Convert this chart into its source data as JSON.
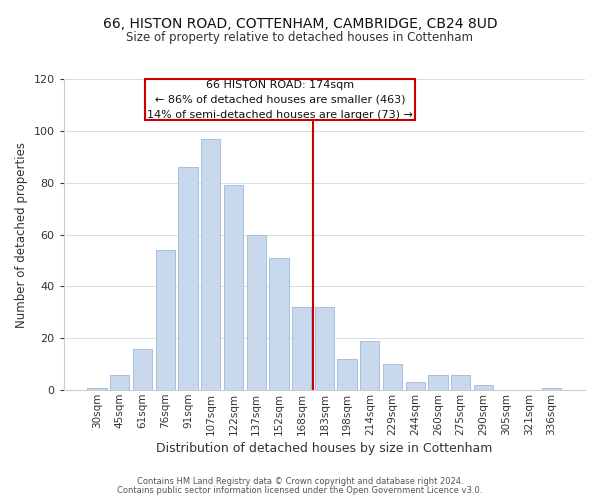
{
  "title1": "66, HISTON ROAD, COTTENHAM, CAMBRIDGE, CB24 8UD",
  "title2": "Size of property relative to detached houses in Cottenham",
  "xlabel": "Distribution of detached houses by size in Cottenham",
  "ylabel": "Number of detached properties",
  "bar_labels": [
    "30sqm",
    "45sqm",
    "61sqm",
    "76sqm",
    "91sqm",
    "107sqm",
    "122sqm",
    "137sqm",
    "152sqm",
    "168sqm",
    "183sqm",
    "198sqm",
    "214sqm",
    "229sqm",
    "244sqm",
    "260sqm",
    "275sqm",
    "290sqm",
    "305sqm",
    "321sqm",
    "336sqm"
  ],
  "bar_heights": [
    1,
    6,
    16,
    54,
    86,
    97,
    79,
    60,
    51,
    32,
    32,
    12,
    19,
    10,
    3,
    6,
    6,
    2,
    0,
    0,
    1
  ],
  "bar_color": "#c8d9ed",
  "bar_edge_color": "#a8bfd8",
  "vline_color": "#cc0000",
  "annotation_title": "66 HISTON ROAD: 174sqm",
  "annotation_line1": "← 86% of detached houses are smaller (463)",
  "annotation_line2": "14% of semi-detached houses are larger (73) →",
  "box_edge_color": "#cc0000",
  "ylim": [
    0,
    120
  ],
  "yticks": [
    0,
    20,
    40,
    60,
    80,
    100,
    120
  ],
  "footer1": "Contains HM Land Registry data © Crown copyright and database right 2024.",
  "footer2": "Contains public sector information licensed under the Open Government Licence v3.0."
}
